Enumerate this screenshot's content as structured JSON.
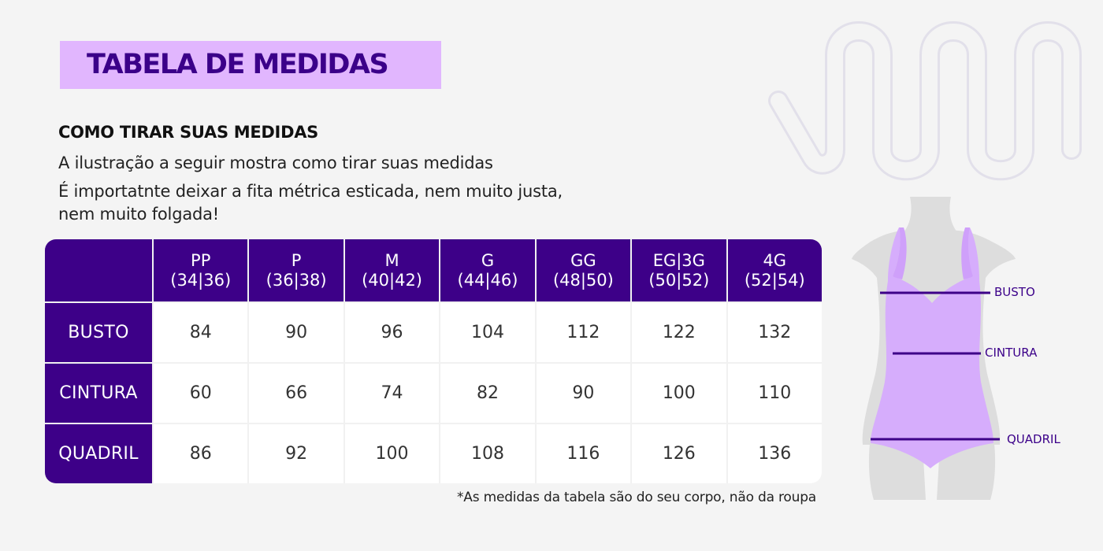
{
  "title": "TABELA DE MEDIDAS",
  "subtitle": "COMO TIRAR SUAS MEDIDAS",
  "description": [
    "A ilustração a seguir mostra como tirar suas medidas",
    "É importatnte deixar a fita métrica esticada, nem muito justa,",
    "nem muito folgada!"
  ],
  "table": {
    "columns": [
      {
        "size": "PP",
        "range": "(34|36)"
      },
      {
        "size": "P",
        "range": "(36|38)"
      },
      {
        "size": "M",
        "range": "(40|42)"
      },
      {
        "size": "G",
        "range": "(44|46)"
      },
      {
        "size": "GG",
        "range": "(48|50)"
      },
      {
        "size": "EG|3G",
        "range": "(50|52)"
      },
      {
        "size": "4G",
        "range": "(52|54)"
      }
    ],
    "rows": [
      {
        "label": "BUSTO",
        "values": [
          "84",
          "90",
          "96",
          "104",
          "112",
          "122",
          "132"
        ]
      },
      {
        "label": "CINTURA",
        "values": [
          "60",
          "66",
          "74",
          "82",
          "90",
          "100",
          "110"
        ]
      },
      {
        "label": "QUADRIL",
        "values": [
          "86",
          "92",
          "100",
          "108",
          "116",
          "126",
          "136"
        ]
      }
    ]
  },
  "note": "*As medidas da tabela são do seu corpo, não da roupa",
  "figure": {
    "labels": {
      "bust": "BUSTO",
      "waist": "CINTURA",
      "hip": "QUADRIL"
    }
  },
  "colors": {
    "primary": "#3d0088",
    "accent": "#e1b6fe",
    "swimsuit": "#d6adfc",
    "mannequin": "#dddddd"
  },
  "icons": [
    "wave-decoration-icon",
    "mannequin-illustration"
  ]
}
